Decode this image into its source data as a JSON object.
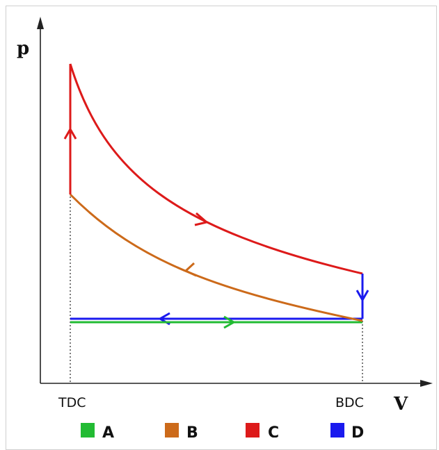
{
  "axes": {
    "y_label": "p",
    "x_label": "V",
    "x_ticks": [
      "TDC",
      "BDC"
    ]
  },
  "legend": [
    {
      "label": "A",
      "color": "#22bb33"
    },
    {
      "label": "B",
      "color": "#cc6a1a"
    },
    {
      "label": "C",
      "color": "#dd1a1a"
    },
    {
      "label": "D",
      "color": "#1a1aee"
    }
  ]
}
